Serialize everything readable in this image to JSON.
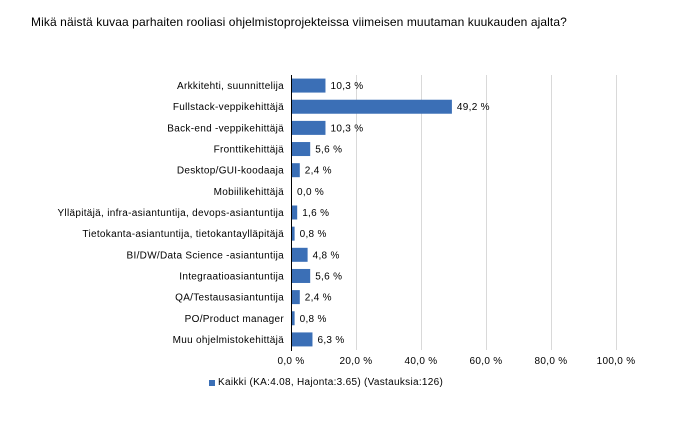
{
  "question": "Mikä näistä kuvaa parhaiten rooliasi ohjelmistoprojekteissa viimeisen muutaman kuukauden ajalta?",
  "colors": {
    "bar": "#3b6fb6",
    "grid": "#d9d9d9",
    "axis": "#000000"
  },
  "chart_data": {
    "type": "bar",
    "orientation": "horizontal",
    "title": "",
    "categories": [
      "Arkkitehti, suunnittelija",
      "Fullstack-veppikehittäjä",
      "Back-end -veppikehittäjä",
      "Fronttikehittäjä",
      "Desktop/GUI-koodaaja",
      "Mobiilikehittäjä",
      "Ylläpitäjä, infra-asiantuntija, devops-asiantuntija",
      "Tietokanta-asiantuntija, tietokantaylläpitäjä",
      "BI/DW/Data Science -asiantuntija",
      "Integraatioasiantuntija",
      "QA/Testausasiantuntija",
      "PO/Product manager",
      "Muu ohjelmistokehittäjä"
    ],
    "series": [
      {
        "name": "Kaikki (KA:4.08, Hajonta:3.65) (Vastauksia:126)",
        "values": [
          10.3,
          49.2,
          10.3,
          5.6,
          2.4,
          0.0,
          1.6,
          0.8,
          4.8,
          5.6,
          2.4,
          0.8,
          6.3
        ],
        "labels": [
          "10,3 %",
          "49,2 %",
          "10,3 %",
          "5,6 %",
          "2,4 %",
          "0,0 %",
          "1,6 %",
          "0,8 %",
          "4,8 %",
          "5,6 %",
          "2,4 %",
          "0,8 %",
          "6,3 %"
        ]
      }
    ],
    "xlim": [
      0,
      100
    ],
    "xticks": [
      0,
      20,
      40,
      60,
      80,
      100
    ],
    "xtick_labels": [
      "0,0 %",
      "20,0 %",
      "40,0 %",
      "60,0 %",
      "80,0 %",
      "100,0 %"
    ],
    "grid": true,
    "legend_position": "bottom"
  }
}
